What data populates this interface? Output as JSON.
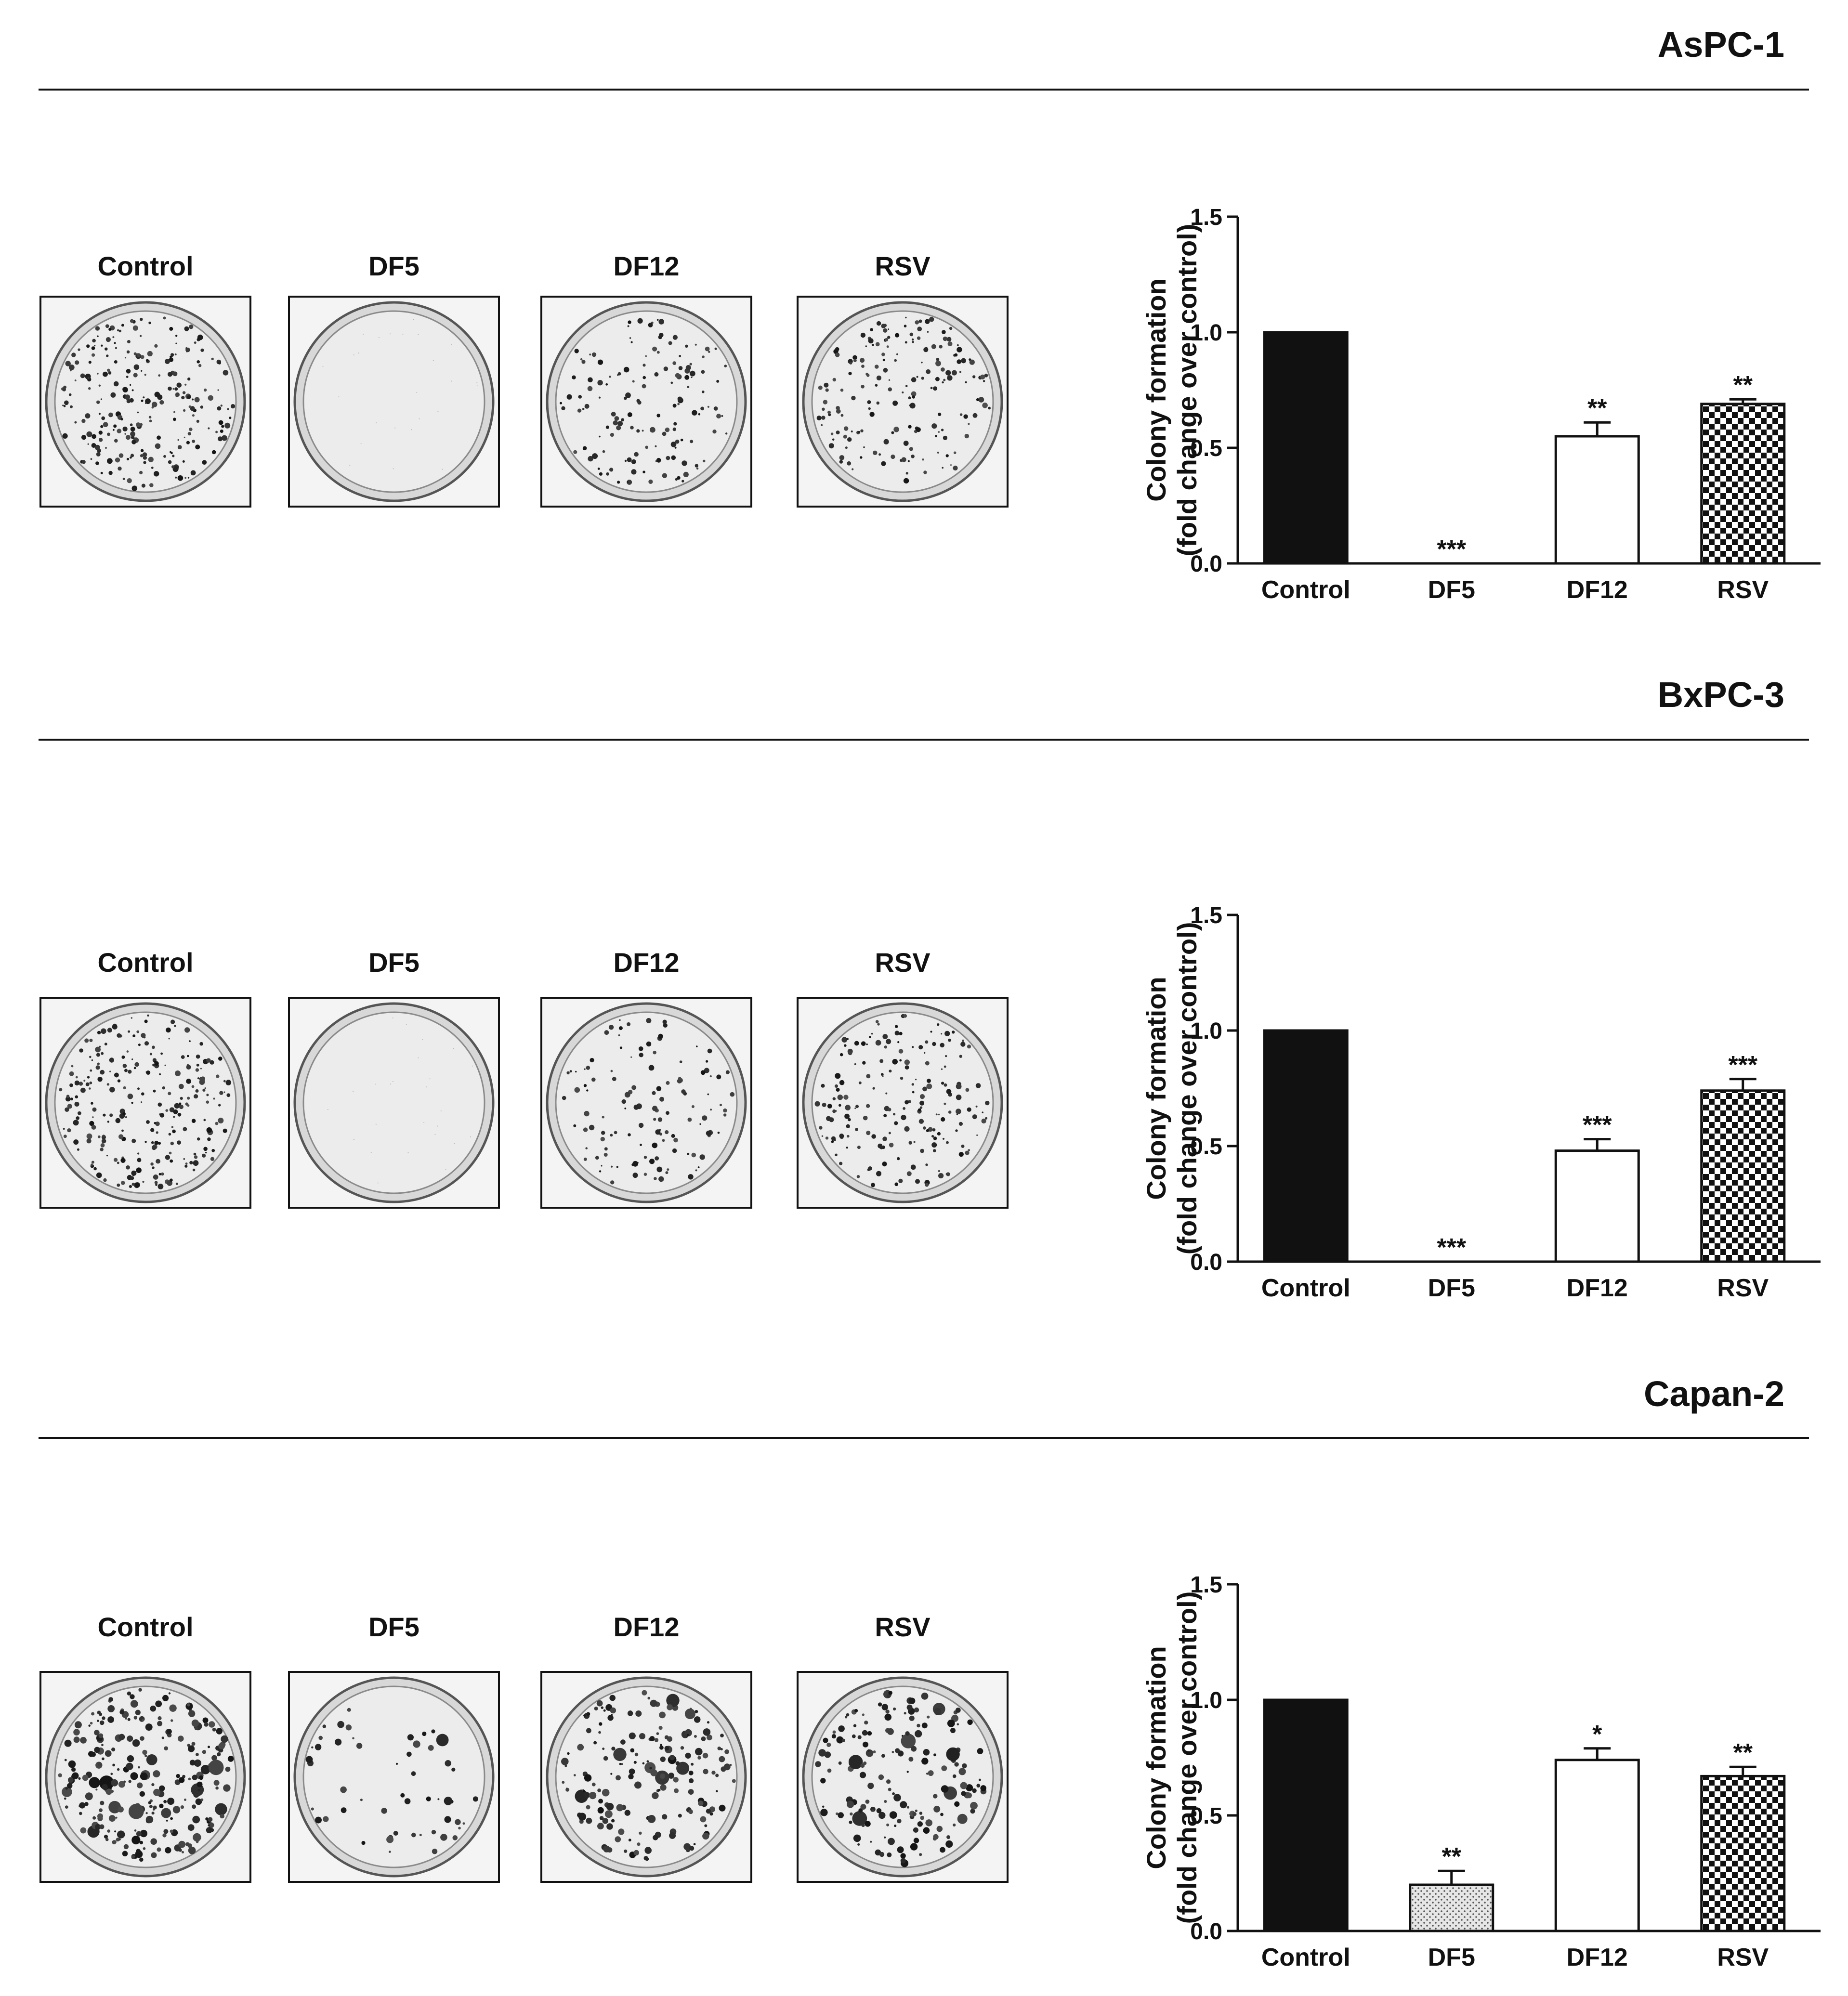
{
  "panels": [
    {
      "cell_line": "AsPC-1",
      "wells": [
        "Control",
        "DF5",
        "DF12",
        "RSV"
      ],
      "colony_density": [
        1.0,
        0.0,
        0.55,
        0.7
      ]
    },
    {
      "cell_line": "BxPC-3",
      "wells": [
        "Control",
        "DF5",
        "DF12",
        "RSV"
      ],
      "colony_density": [
        1.0,
        0.0,
        0.48,
        0.74
      ]
    },
    {
      "cell_line": "Capan-2",
      "wells": [
        "Control",
        "DF5",
        "DF12",
        "RSV"
      ],
      "colony_density": [
        1.0,
        0.2,
        0.74,
        0.67
      ]
    }
  ],
  "chart_data": [
    {
      "type": "bar",
      "title": "",
      "ylabel": "Colony formation (fold change over control)",
      "ylabel_lines": [
        "Colony formation",
        "(fold change over control)"
      ],
      "xlabel": "",
      "categories": [
        "Control",
        "DF5",
        "DF12",
        "RSV"
      ],
      "values": [
        1.0,
        0.0,
        0.55,
        0.69
      ],
      "errors": [
        0.0,
        0.0,
        0.06,
        0.02
      ],
      "significance": [
        "",
        "***",
        "**",
        "**"
      ],
      "fills": [
        "solid",
        "none",
        "white",
        "checker"
      ],
      "ylim": [
        0,
        1.5
      ],
      "yticks": [
        "0.0",
        "0.5",
        "1.0",
        "1.5"
      ]
    },
    {
      "type": "bar",
      "title": "",
      "ylabel": "Colony formation (fold change over control)",
      "ylabel_lines": [
        "Colony formation",
        "(fold change over control)"
      ],
      "xlabel": "",
      "categories": [
        "Control",
        "DF5",
        "DF12",
        "RSV"
      ],
      "values": [
        1.0,
        0.0,
        0.48,
        0.74
      ],
      "errors": [
        0.0,
        0.0,
        0.05,
        0.05
      ],
      "significance": [
        "",
        "***",
        "***",
        "***"
      ],
      "fills": [
        "solid",
        "none",
        "white",
        "checker"
      ],
      "ylim": [
        0,
        1.5
      ],
      "yticks": [
        "0.0",
        "0.5",
        "1.0",
        "1.5"
      ]
    },
    {
      "type": "bar",
      "title": "",
      "ylabel": "Colony formation (fold change over control)",
      "ylabel_lines": [
        "Colony formation",
        "(fold change over control)"
      ],
      "xlabel": "",
      "categories": [
        "Control",
        "DF5",
        "DF12",
        "RSV"
      ],
      "values": [
        1.0,
        0.2,
        0.74,
        0.67
      ],
      "errors": [
        0.0,
        0.06,
        0.05,
        0.04
      ],
      "significance": [
        "",
        "**",
        "*",
        "**"
      ],
      "fills": [
        "solid",
        "dots",
        "white",
        "checker"
      ],
      "ylim": [
        0,
        1.5
      ],
      "yticks": [
        "0.0",
        "0.5",
        "1.0",
        "1.5"
      ]
    }
  ]
}
